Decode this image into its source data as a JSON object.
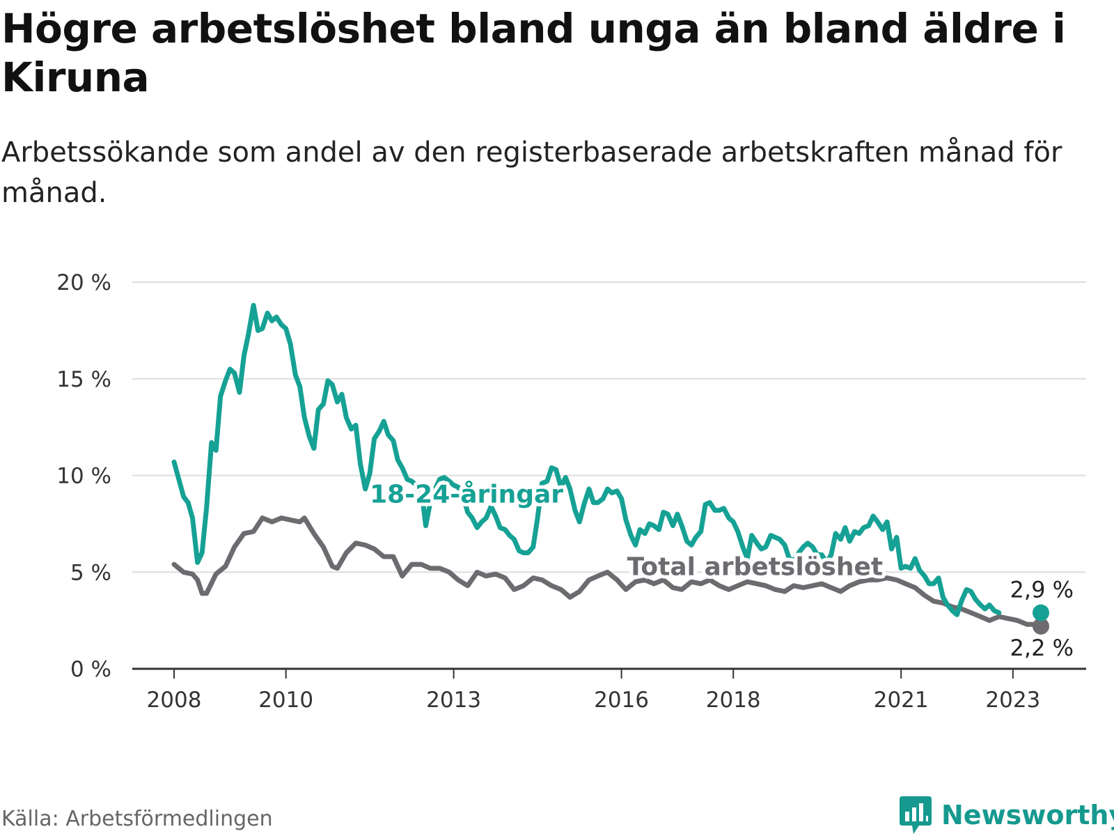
{
  "title": "Högre arbetslöshet bland unga än bland äldre i Kiruna",
  "subtitle": "Arbetssökande som andel av den registerbaserade arbetskraften månad för månad.",
  "source": "Källa: Arbetsförmedlingen",
  "brand": "Newsworthy",
  "colors": {
    "youth": "#16a195",
    "total": "#6d6b70",
    "grid": "#dddddd",
    "axis": "#333333",
    "brand": "#16998f"
  },
  "chart_data": {
    "type": "line",
    "ylim": [
      0,
      20
    ],
    "xlim": [
      2008,
      2023.92
    ],
    "y_ticks": [
      {
        "value": 0,
        "label": "0 %"
      },
      {
        "value": 5,
        "label": "5 %"
      },
      {
        "value": 10,
        "label": "10 %"
      },
      {
        "value": 15,
        "label": "15 %"
      },
      {
        "value": 20,
        "label": "20 %"
      }
    ],
    "x_ticks": [
      {
        "value": 2008,
        "label": "2008"
      },
      {
        "value": 2010,
        "label": "2010"
      },
      {
        "value": 2013,
        "label": "2013"
      },
      {
        "value": 2016,
        "label": "2016"
      },
      {
        "value": 2018,
        "label": "2018"
      },
      {
        "value": 2021,
        "label": "2021"
      },
      {
        "value": 2023,
        "label": "2023"
      }
    ],
    "series": [
      {
        "name": "Total arbetslöshet",
        "key": "total",
        "label_at": {
          "x": 2016.1,
          "y": 4.85
        },
        "end_label": "2,2 %",
        "points": [
          [
            2008.0,
            5.4
          ],
          [
            2008.17,
            5.0
          ],
          [
            2008.33,
            4.9
          ],
          [
            2008.42,
            4.6
          ],
          [
            2008.5,
            3.9
          ],
          [
            2008.58,
            3.9
          ],
          [
            2008.75,
            4.9
          ],
          [
            2008.92,
            5.3
          ],
          [
            2009.08,
            6.3
          ],
          [
            2009.25,
            7.0
          ],
          [
            2009.42,
            7.1
          ],
          [
            2009.58,
            7.8
          ],
          [
            2009.75,
            7.6
          ],
          [
            2009.92,
            7.8
          ],
          [
            2010.08,
            7.7
          ],
          [
            2010.25,
            7.6
          ],
          [
            2010.33,
            7.8
          ],
          [
            2010.5,
            7.0
          ],
          [
            2010.67,
            6.3
          ],
          [
            2010.83,
            5.3
          ],
          [
            2010.92,
            5.2
          ],
          [
            2011.08,
            6.0
          ],
          [
            2011.25,
            6.5
          ],
          [
            2011.42,
            6.4
          ],
          [
            2011.58,
            6.2
          ],
          [
            2011.75,
            5.8
          ],
          [
            2011.92,
            5.8
          ],
          [
            2012.08,
            4.8
          ],
          [
            2012.25,
            5.4
          ],
          [
            2012.42,
            5.4
          ],
          [
            2012.58,
            5.2
          ],
          [
            2012.75,
            5.2
          ],
          [
            2012.92,
            5.0
          ],
          [
            2013.08,
            4.6
          ],
          [
            2013.25,
            4.3
          ],
          [
            2013.42,
            5.0
          ],
          [
            2013.58,
            4.8
          ],
          [
            2013.75,
            4.9
          ],
          [
            2013.92,
            4.7
          ],
          [
            2014.08,
            4.1
          ],
          [
            2014.25,
            4.3
          ],
          [
            2014.42,
            4.7
          ],
          [
            2014.58,
            4.6
          ],
          [
            2014.75,
            4.3
          ],
          [
            2014.92,
            4.1
          ],
          [
            2015.08,
            3.7
          ],
          [
            2015.25,
            4.0
          ],
          [
            2015.42,
            4.6
          ],
          [
            2015.58,
            4.8
          ],
          [
            2015.75,
            5.0
          ],
          [
            2015.92,
            4.6
          ],
          [
            2016.08,
            4.1
          ],
          [
            2016.25,
            4.5
          ],
          [
            2016.42,
            4.6
          ],
          [
            2016.58,
            4.4
          ],
          [
            2016.75,
            4.6
          ],
          [
            2016.92,
            4.2
          ],
          [
            2017.08,
            4.1
          ],
          [
            2017.25,
            4.5
          ],
          [
            2017.42,
            4.4
          ],
          [
            2017.58,
            4.6
          ],
          [
            2017.75,
            4.3
          ],
          [
            2017.92,
            4.1
          ],
          [
            2018.08,
            4.3
          ],
          [
            2018.25,
            4.5
          ],
          [
            2018.42,
            4.4
          ],
          [
            2018.58,
            4.3
          ],
          [
            2018.75,
            4.1
          ],
          [
            2018.92,
            4.0
          ],
          [
            2019.08,
            4.3
          ],
          [
            2019.25,
            4.2
          ],
          [
            2019.42,
            4.3
          ],
          [
            2019.58,
            4.4
          ],
          [
            2019.75,
            4.2
          ],
          [
            2019.92,
            4.0
          ],
          [
            2020.08,
            4.3
          ],
          [
            2020.25,
            4.5
          ],
          [
            2020.42,
            4.6
          ],
          [
            2020.58,
            4.6
          ],
          [
            2020.75,
            4.7
          ],
          [
            2020.92,
            4.6
          ],
          [
            2021.08,
            4.4
          ],
          [
            2021.25,
            4.2
          ],
          [
            2021.42,
            3.8
          ],
          [
            2021.58,
            3.5
          ],
          [
            2021.75,
            3.4
          ],
          [
            2021.92,
            3.2
          ],
          [
            2022.08,
            3.1
          ],
          [
            2022.25,
            2.9
          ],
          [
            2022.42,
            2.7
          ],
          [
            2022.58,
            2.5
          ],
          [
            2022.75,
            2.7
          ],
          [
            2022.92,
            2.6
          ],
          [
            2023.08,
            2.5
          ],
          [
            2023.25,
            2.3
          ],
          [
            2023.42,
            2.3
          ],
          [
            2023.5,
            2.2
          ]
        ]
      },
      {
        "name": "18-24-åringar",
        "key": "youth",
        "label_at": {
          "x": 2011.5,
          "y": 8.6
        },
        "end_label": "2,9 %",
        "points": [
          [
            2008.0,
            10.7
          ],
          [
            2008.17,
            8.9
          ],
          [
            2008.25,
            8.6
          ],
          [
            2008.33,
            7.8
          ],
          [
            2008.42,
            5.5
          ],
          [
            2008.5,
            6.0
          ],
          [
            2008.58,
            8.3
          ],
          [
            2008.67,
            11.7
          ],
          [
            2008.75,
            11.3
          ],
          [
            2008.83,
            14.1
          ],
          [
            2008.92,
            14.9
          ],
          [
            2009.0,
            15.5
          ],
          [
            2009.08,
            15.3
          ],
          [
            2009.17,
            14.3
          ],
          [
            2009.25,
            16.2
          ],
          [
            2009.33,
            17.3
          ],
          [
            2009.42,
            18.8
          ],
          [
            2009.5,
            17.5
          ],
          [
            2009.58,
            17.6
          ],
          [
            2009.67,
            18.4
          ],
          [
            2009.75,
            18.0
          ],
          [
            2009.83,
            18.2
          ],
          [
            2009.92,
            17.8
          ],
          [
            2010.0,
            17.6
          ],
          [
            2010.08,
            16.8
          ],
          [
            2010.17,
            15.2
          ],
          [
            2010.25,
            14.6
          ],
          [
            2010.33,
            13.0
          ],
          [
            2010.42,
            12.0
          ],
          [
            2010.5,
            11.4
          ],
          [
            2010.58,
            13.4
          ],
          [
            2010.67,
            13.7
          ],
          [
            2010.75,
            14.9
          ],
          [
            2010.83,
            14.7
          ],
          [
            2010.92,
            13.8
          ],
          [
            2011.0,
            14.2
          ],
          [
            2011.08,
            13.0
          ],
          [
            2011.17,
            12.4
          ],
          [
            2011.25,
            12.6
          ],
          [
            2011.33,
            10.6
          ],
          [
            2011.42,
            9.3
          ],
          [
            2011.5,
            10.1
          ],
          [
            2011.58,
            11.9
          ],
          [
            2011.67,
            12.3
          ],
          [
            2011.75,
            12.8
          ],
          [
            2011.83,
            12.1
          ],
          [
            2011.92,
            11.8
          ],
          [
            2012.0,
            10.8
          ],
          [
            2012.08,
            10.4
          ],
          [
            2012.17,
            9.8
          ],
          [
            2012.25,
            9.7
          ],
          [
            2012.33,
            9.5
          ],
          [
            2012.42,
            9.3
          ],
          [
            2012.5,
            7.4
          ],
          [
            2012.58,
            8.6
          ],
          [
            2012.67,
            9.3
          ],
          [
            2012.75,
            9.8
          ],
          [
            2012.83,
            9.9
          ],
          [
            2012.92,
            9.7
          ],
          [
            2013.0,
            9.5
          ],
          [
            2013.08,
            9.4
          ],
          [
            2013.17,
            8.9
          ],
          [
            2013.25,
            8.1
          ],
          [
            2013.33,
            7.8
          ],
          [
            2013.42,
            7.3
          ],
          [
            2013.5,
            7.6
          ],
          [
            2013.58,
            7.8
          ],
          [
            2013.67,
            8.4
          ],
          [
            2013.75,
            7.9
          ],
          [
            2013.83,
            7.3
          ],
          [
            2013.92,
            7.2
          ],
          [
            2014.0,
            6.9
          ],
          [
            2014.08,
            6.7
          ],
          [
            2014.17,
            6.1
          ],
          [
            2014.25,
            6.0
          ],
          [
            2014.33,
            6.0
          ],
          [
            2014.42,
            6.3
          ],
          [
            2014.5,
            7.8
          ],
          [
            2014.58,
            9.6
          ],
          [
            2014.67,
            9.7
          ],
          [
            2014.75,
            10.4
          ],
          [
            2014.83,
            10.3
          ],
          [
            2014.92,
            9.4
          ],
          [
            2015.0,
            9.9
          ],
          [
            2015.08,
            9.3
          ],
          [
            2015.17,
            8.2
          ],
          [
            2015.25,
            7.6
          ],
          [
            2015.33,
            8.5
          ],
          [
            2015.42,
            9.3
          ],
          [
            2015.5,
            8.6
          ],
          [
            2015.58,
            8.6
          ],
          [
            2015.67,
            8.8
          ],
          [
            2015.75,
            9.3
          ],
          [
            2015.83,
            9.1
          ],
          [
            2015.92,
            9.2
          ],
          [
            2016.0,
            8.8
          ],
          [
            2016.08,
            7.7
          ],
          [
            2016.17,
            6.9
          ],
          [
            2016.25,
            6.4
          ],
          [
            2016.33,
            7.2
          ],
          [
            2016.42,
            7.0
          ],
          [
            2016.5,
            7.5
          ],
          [
            2016.58,
            7.4
          ],
          [
            2016.67,
            7.2
          ],
          [
            2016.75,
            8.1
          ],
          [
            2016.83,
            8.0
          ],
          [
            2016.92,
            7.4
          ],
          [
            2017.0,
            8.0
          ],
          [
            2017.08,
            7.4
          ],
          [
            2017.17,
            6.6
          ],
          [
            2017.25,
            6.4
          ],
          [
            2017.33,
            6.8
          ],
          [
            2017.42,
            7.1
          ],
          [
            2017.5,
            8.5
          ],
          [
            2017.58,
            8.6
          ],
          [
            2017.67,
            8.2
          ],
          [
            2017.75,
            8.2
          ],
          [
            2017.83,
            8.3
          ],
          [
            2017.92,
            7.8
          ],
          [
            2018.0,
            7.6
          ],
          [
            2018.08,
            7.1
          ],
          [
            2018.17,
            6.3
          ],
          [
            2018.25,
            5.7
          ],
          [
            2018.33,
            6.9
          ],
          [
            2018.42,
            6.5
          ],
          [
            2018.5,
            6.2
          ],
          [
            2018.58,
            6.3
          ],
          [
            2018.67,
            6.9
          ],
          [
            2018.75,
            6.8
          ],
          [
            2018.83,
            6.7
          ],
          [
            2018.92,
            6.4
          ],
          [
            2019.0,
            5.7
          ],
          [
            2019.08,
            5.6
          ],
          [
            2019.17,
            6.0
          ],
          [
            2019.25,
            6.3
          ],
          [
            2019.33,
            6.5
          ],
          [
            2019.42,
            6.3
          ],
          [
            2019.5,
            5.9
          ],
          [
            2019.58,
            5.9
          ],
          [
            2019.67,
            5.5
          ],
          [
            2019.75,
            5.9
          ],
          [
            2019.83,
            7.0
          ],
          [
            2019.92,
            6.7
          ],
          [
            2020.0,
            7.3
          ],
          [
            2020.08,
            6.6
          ],
          [
            2020.17,
            7.1
          ],
          [
            2020.25,
            7.0
          ],
          [
            2020.33,
            7.3
          ],
          [
            2020.42,
            7.4
          ],
          [
            2020.5,
            7.9
          ],
          [
            2020.58,
            7.6
          ],
          [
            2020.67,
            7.2
          ],
          [
            2020.75,
            7.6
          ],
          [
            2020.83,
            6.2
          ],
          [
            2020.92,
            6.8
          ],
          [
            2021.0,
            5.2
          ],
          [
            2021.08,
            5.3
          ],
          [
            2021.17,
            5.2
          ],
          [
            2021.25,
            5.7
          ],
          [
            2021.33,
            5.1
          ],
          [
            2021.42,
            4.8
          ],
          [
            2021.5,
            4.4
          ],
          [
            2021.58,
            4.4
          ],
          [
            2021.67,
            4.7
          ],
          [
            2021.75,
            3.7
          ],
          [
            2021.83,
            3.3
          ],
          [
            2021.92,
            3.0
          ],
          [
            2022.0,
            2.8
          ],
          [
            2022.08,
            3.5
          ],
          [
            2022.17,
            4.1
          ],
          [
            2022.25,
            4.0
          ],
          [
            2022.33,
            3.6
          ],
          [
            2022.42,
            3.3
          ],
          [
            2022.5,
            3.1
          ],
          [
            2022.58,
            3.3
          ],
          [
            2022.67,
            3.0
          ],
          [
            2022.75,
            2.9
          ]
        ]
      }
    ]
  }
}
